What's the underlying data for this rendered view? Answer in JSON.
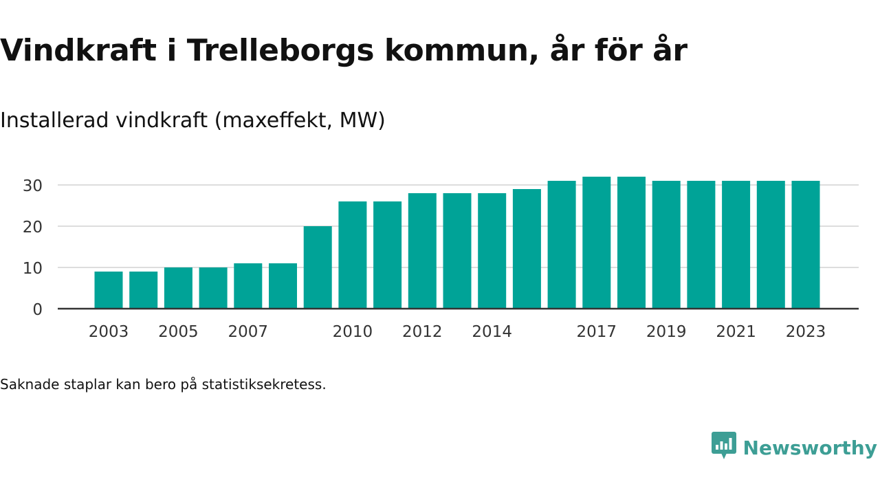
{
  "title": "Vindkraft i Trelleborgs kommun, år för år",
  "subtitle": "Installerad vindkraft (maxeffekt, MW)",
  "footnote": "Saknade staplar kan bero på statistiksekretess.",
  "brand": {
    "name": "Newsworthy",
    "logo_icon": "newsworthy-chat-bar-icon",
    "color": "#3d9e95"
  },
  "chart_data": {
    "type": "bar",
    "categories": [
      "2003",
      "2004",
      "2005",
      "2006",
      "2007",
      "2008",
      "2009",
      "2010",
      "2011",
      "2012",
      "2013",
      "2014",
      "2015",
      "2016",
      "2017",
      "2018",
      "2019",
      "2020",
      "2021",
      "2022",
      "2023"
    ],
    "values": [
      9,
      9,
      10,
      10,
      11,
      11,
      20,
      26,
      26,
      28,
      28,
      28,
      29,
      31,
      32,
      32,
      31,
      31,
      31,
      31,
      31
    ],
    "x_tick_labels": [
      "2003",
      "2005",
      "2007",
      "2010",
      "2012",
      "2014",
      "2017",
      "2019",
      "2021",
      "2023"
    ],
    "y_ticks": [
      0,
      10,
      20,
      30
    ],
    "ylim": [
      0,
      33
    ],
    "grid": true,
    "bar_color": "#00a397",
    "xlabel": "",
    "ylabel": ""
  }
}
